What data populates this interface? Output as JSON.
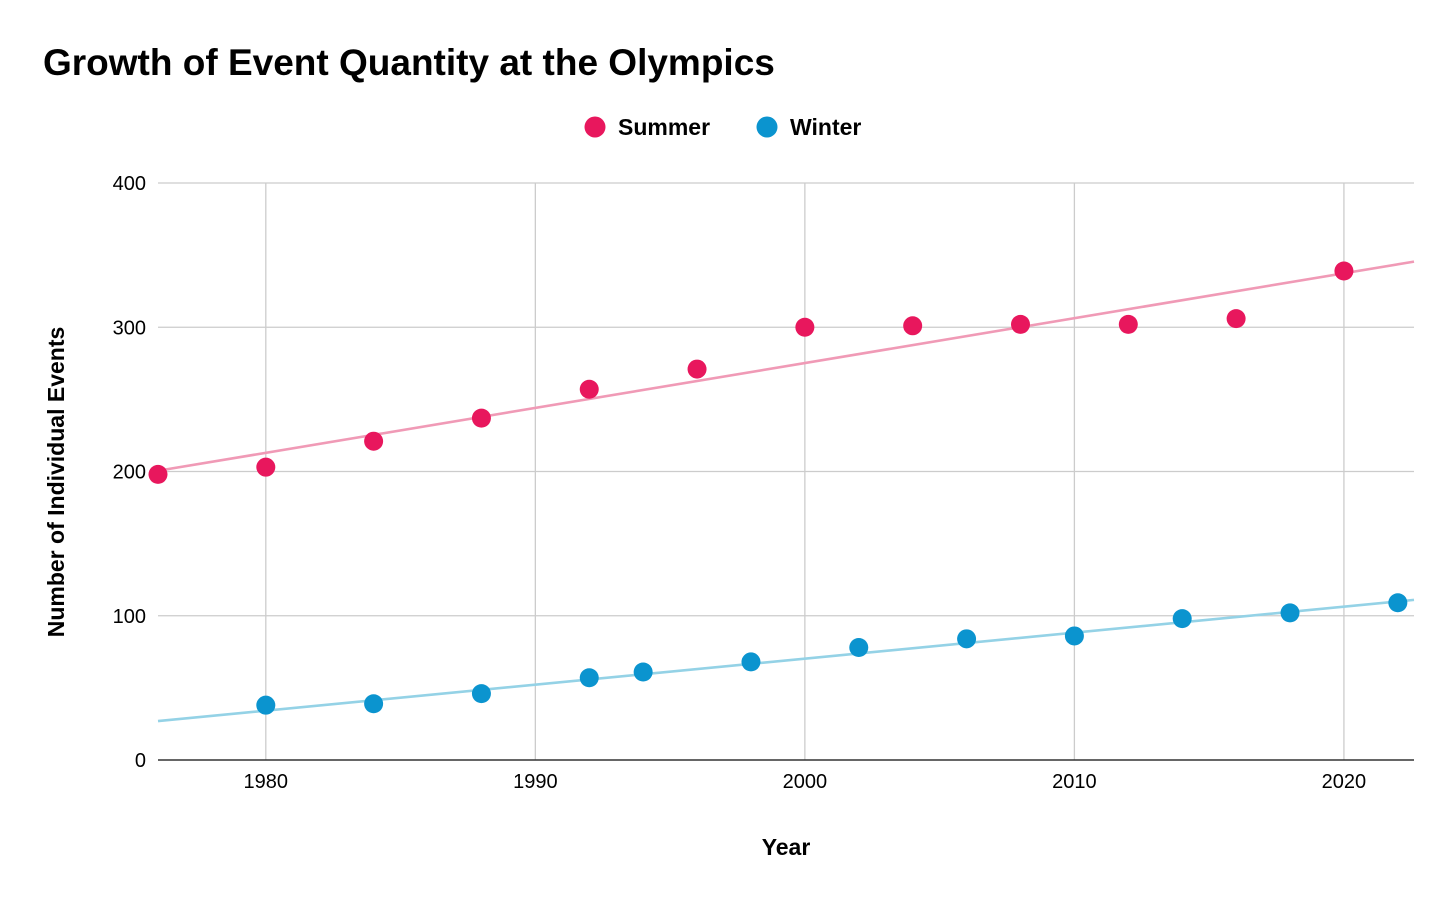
{
  "title": "Growth of Event Quantity at the Olympics",
  "chart_data": {
    "type": "scatter",
    "title": "Growth of Event Quantity at the Olympics",
    "xlabel": "Year",
    "ylabel": "Number of Individual Events",
    "xlim": [
      1976,
      2022.6
    ],
    "ylim": [
      0,
      400
    ],
    "xticks": [
      1980,
      1990,
      2000,
      2010,
      2020
    ],
    "yticks": [
      0,
      100,
      200,
      300,
      400
    ],
    "grid": true,
    "legend_position": "top-center",
    "series": [
      {
        "name": "Summer",
        "color": "#e8175d",
        "trendline_color": "#f09ab6",
        "trendline": [
          [
            1976,
            200.5
          ],
          [
            2022.6,
            345.5
          ]
        ],
        "x": [
          1976,
          1980,
          1984,
          1988,
          1992,
          1996,
          2000,
          2004,
          2008,
          2012,
          2016,
          2020
        ],
        "y": [
          198,
          203,
          221,
          237,
          257,
          271,
          300,
          301,
          302,
          302,
          306,
          339
        ]
      },
      {
        "name": "Winter",
        "color": "#0b94cf",
        "trendline_color": "#94d2e6",
        "trendline": [
          [
            1976,
            27
          ],
          [
            2022.6,
            111
          ]
        ],
        "x": [
          1980,
          1984,
          1988,
          1992,
          1994,
          1998,
          2002,
          2006,
          2010,
          2014,
          2018,
          2022
        ],
        "y": [
          38,
          39,
          46,
          57,
          61,
          68,
          78,
          84,
          86,
          98,
          102,
          109
        ]
      }
    ]
  }
}
